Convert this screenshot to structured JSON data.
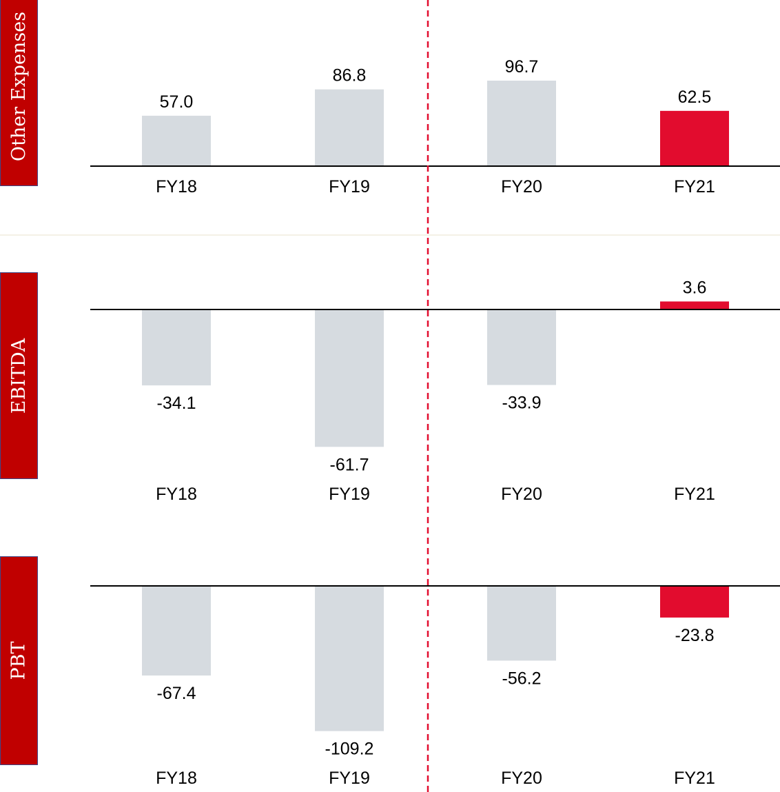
{
  "colors": {
    "bar_default": "#d6dbe0",
    "bar_highlight": "#e20c2e",
    "label_box": "#c00000",
    "label_box_border": "#3a4a8c",
    "label_text": "#ffffff",
    "axis": "#000000",
    "divider": "#e20c2e",
    "text": "#000000"
  },
  "panels": [
    {
      "label": "Other Expenses"
    },
    {
      "label": "EBITDA"
    },
    {
      "label": "PBT"
    }
  ],
  "chart_data": [
    {
      "type": "bar",
      "categories": [
        "FY18",
        "FY19",
        "FY20",
        "FY21"
      ],
      "values": [
        57.0,
        86.8,
        96.7,
        62.5
      ],
      "value_labels": [
        "57.0",
        "86.8",
        "96.7",
        "62.5"
      ],
      "highlight_index": 3,
      "title": "",
      "xlabel": "",
      "ylabel": "Other Expenses",
      "divider_between": [
        "FY19",
        "FY20"
      ],
      "grid": false
    },
    {
      "type": "bar",
      "categories": [
        "FY18",
        "FY19",
        "FY20",
        "FY21"
      ],
      "values": [
        -34.1,
        -61.7,
        -33.9,
        3.6
      ],
      "value_labels": [
        "-34.1",
        "-61.7",
        "-33.9",
        "3.6"
      ],
      "highlight_index": 3,
      "title": "",
      "xlabel": "",
      "ylabel": "EBITDA",
      "divider_between": [
        "FY19",
        "FY20"
      ],
      "grid": false
    },
    {
      "type": "bar",
      "categories": [
        "FY18",
        "FY19",
        "FY20",
        "FY21"
      ],
      "values": [
        -67.4,
        -109.2,
        -56.2,
        -23.8
      ],
      "value_labels": [
        "-67.4",
        "-109.2",
        "-56.2",
        "-23.8"
      ],
      "highlight_index": 3,
      "title": "",
      "xlabel": "",
      "ylabel": "PBT",
      "divider_between": [
        "FY19",
        "FY20"
      ],
      "grid": false
    }
  ]
}
